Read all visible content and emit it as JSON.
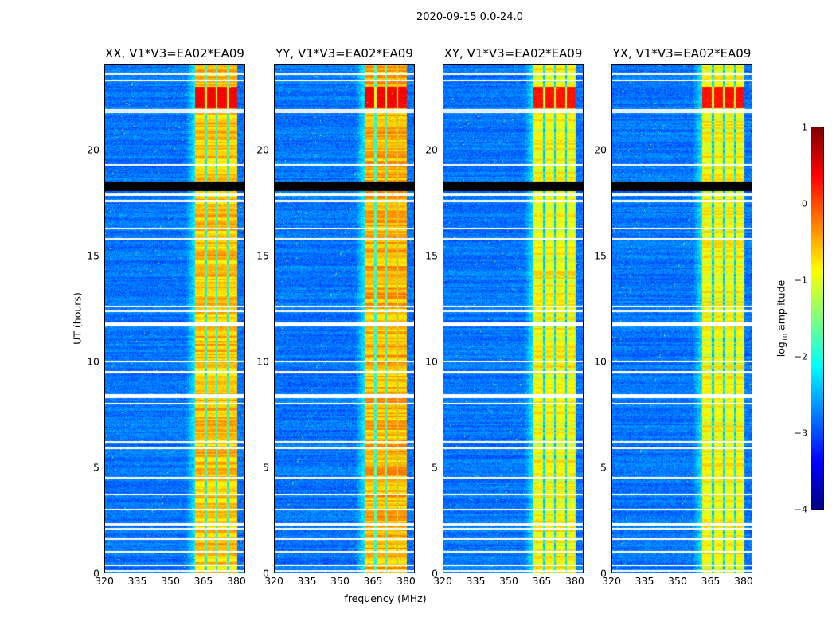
{
  "suptitle": "2020-09-15 0.0-24.0",
  "chart_data": {
    "type": "heatmap",
    "title": "2020-09-15 0.0-24.0",
    "xlabel": "frequency (MHz)",
    "ylabel": "UT (hours)",
    "xlim": [
      320,
      384
    ],
    "ylim": [
      0,
      24
    ],
    "xticks": [
      "320",
      "335",
      "350",
      "365",
      "380"
    ],
    "yticks": [
      "0",
      "5",
      "10",
      "15",
      "20"
    ],
    "panels": [
      {
        "title": "XX, V1*V3=EA02*EA09",
        "band_level": -0.6,
        "peak_level": 0.4
      },
      {
        "title": "YY, V1*V3=EA02*EA09",
        "band_level": -0.5,
        "peak_level": 0.4
      },
      {
        "title": "XY, V1*V3=EA02*EA09",
        "band_level": -0.9,
        "peak_level": 0.3
      },
      {
        "title": "YX, V1*V3=EA02*EA09",
        "band_level": -0.9,
        "peak_level": 0.3
      }
    ],
    "background_level": -2.8,
    "rfi_band_mhz": [
      360.7,
      380
    ],
    "band_gaps_mhz": [
      365.5,
      370.5,
      375.5
    ],
    "strong_ut": [
      22.0,
      23.0
    ],
    "flagged_black_ut": [
      [
        18.05,
        18.5
      ]
    ],
    "flagged_white_ut": [
      0.1,
      0.35,
      1.0,
      1.6,
      2.1,
      2.3,
      3.0,
      3.7,
      4.5,
      5.9,
      6.2,
      8.0,
      8.3,
      8.4,
      9.5,
      10.0,
      11.7,
      11.8,
      12.4,
      12.6,
      15.8,
      16.3,
      17.6,
      17.9,
      19.3,
      21.8,
      21.9,
      23.6,
      23.3
    ],
    "colorbar": {
      "label": "log10 amplitude",
      "label_base": "log",
      "label_sub": "10",
      "label_rest": " amplitude",
      "range": [
        -4,
        1
      ],
      "ticks": [
        "1",
        "0",
        "−1",
        "−2",
        "−3",
        "−4"
      ],
      "colormap": "jet"
    }
  }
}
